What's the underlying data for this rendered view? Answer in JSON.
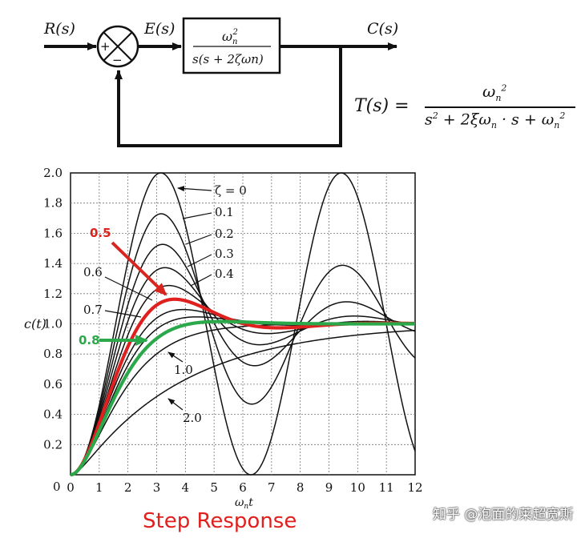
{
  "block_diagram": {
    "input_label": "R(s)",
    "error_label": "E(s)",
    "output_label": "C(s)",
    "sum_plus": "+",
    "sum_minus": "−",
    "plant_numerator": "ωn2",
    "plant_denominator": "s(s + 2ζωn)"
  },
  "formula": {
    "lhs": "T(s) =",
    "numerator": "ωn2",
    "denominator": "s2 + 2ξωn · s + ωn2"
  },
  "chart_data": {
    "type": "line",
    "xlabel": "ωnt",
    "ylabel": "c(t)",
    "xlim": [
      0,
      12
    ],
    "ylim": [
      0,
      2.0
    ],
    "x_ticks": [
      "0",
      "1",
      "2",
      "3",
      "4",
      "5",
      "6",
      "7",
      "8",
      "9",
      "10",
      "11",
      "12"
    ],
    "y_ticks": [
      "0.2",
      "0.4",
      "0.6",
      "0.8",
      "1.0",
      "1.2",
      "1.4",
      "1.6",
      "1.8",
      "2.0"
    ],
    "grid": true,
    "series": [
      {
        "name": "ζ = 0",
        "zeta": 0,
        "color": "#111111"
      },
      {
        "name": "0.1",
        "zeta": 0.1,
        "color": "#111111"
      },
      {
        "name": "0.2",
        "zeta": 0.2,
        "color": "#111111"
      },
      {
        "name": "0.3",
        "zeta": 0.3,
        "color": "#111111"
      },
      {
        "name": "0.4",
        "zeta": 0.4,
        "color": "#111111"
      },
      {
        "name": "0.5",
        "zeta": 0.5,
        "color": "#e0201e",
        "highlight": true
      },
      {
        "name": "0.6",
        "zeta": 0.6,
        "color": "#111111"
      },
      {
        "name": "0.7",
        "zeta": 0.7,
        "color": "#111111"
      },
      {
        "name": "0.8",
        "zeta": 0.8,
        "color": "#2aa84a",
        "highlight": true
      },
      {
        "name": "1.0",
        "zeta": 1.0,
        "color": "#111111"
      },
      {
        "name": "2.0",
        "zeta": 2.0,
        "color": "#111111"
      }
    ]
  },
  "caption": "Step Response",
  "watermark": "知乎 @泡面的莱超宽斯"
}
